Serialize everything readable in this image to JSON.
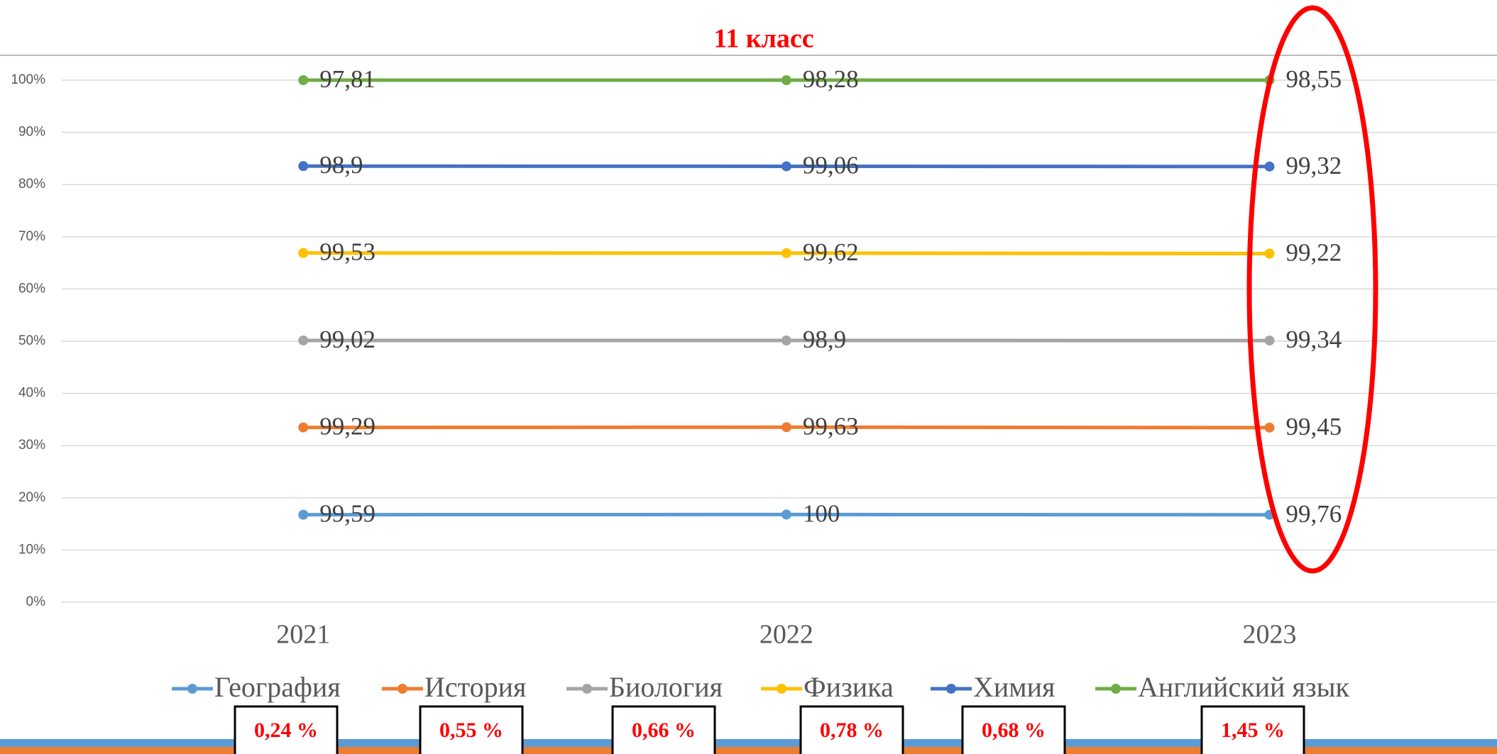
{
  "chart_data": {
    "type": "line",
    "stacking": "percent",
    "title": "11 класс",
    "categories": [
      "2021",
      "2022",
      "2023"
    ],
    "series": [
      {
        "name": "География",
        "color": "#5b9bd5",
        "values": [
          99.59,
          100,
          99.76
        ],
        "value_labels": [
          "99,59",
          "100",
          "99,76"
        ]
      },
      {
        "name": "История",
        "color": "#ed7d31",
        "values": [
          99.29,
          99.63,
          99.45
        ],
        "value_labels": [
          "99,29",
          "99,63",
          "99,45"
        ]
      },
      {
        "name": "Биология",
        "color": "#a5a5a5",
        "values": [
          99.02,
          98.9,
          99.34
        ],
        "value_labels": [
          "99,02",
          "98,9",
          "99,34"
        ]
      },
      {
        "name": "Физика",
        "color": "#ffc000",
        "values": [
          99.53,
          99.62,
          99.22
        ],
        "value_labels": [
          "99,53",
          "99,62",
          "99,22"
        ]
      },
      {
        "name": "Химия",
        "color": "#4472c4",
        "values": [
          98.9,
          99.06,
          99.32
        ],
        "value_labels": [
          "98,9",
          "99,06",
          "99,32"
        ]
      },
      {
        "name": "Английский язык",
        "color": "#70ad47",
        "values": [
          97.81,
          98.28,
          98.55
        ],
        "value_labels": [
          "97,81",
          "98,28",
          "98,55"
        ]
      }
    ],
    "ylim": [
      0,
      100
    ],
    "yticks": [
      {
        "value": 0,
        "label": "0%"
      },
      {
        "value": 10,
        "label": "10%"
      },
      {
        "value": 20,
        "label": "20%"
      },
      {
        "value": 30,
        "label": "30%"
      },
      {
        "value": 40,
        "label": "40%"
      },
      {
        "value": 50,
        "label": "50%"
      },
      {
        "value": 60,
        "label": "60%"
      },
      {
        "value": 70,
        "label": "70%"
      },
      {
        "value": 80,
        "label": "80%"
      },
      {
        "value": 90,
        "label": "90%"
      },
      {
        "value": 100,
        "label": "100%"
      }
    ],
    "grid": true,
    "legend": "bottom",
    "annotations": [
      "0,24 %",
      "0,55 %",
      "0,66 %",
      "0,78 %",
      "0,68 %",
      "1,45 %"
    ]
  }
}
